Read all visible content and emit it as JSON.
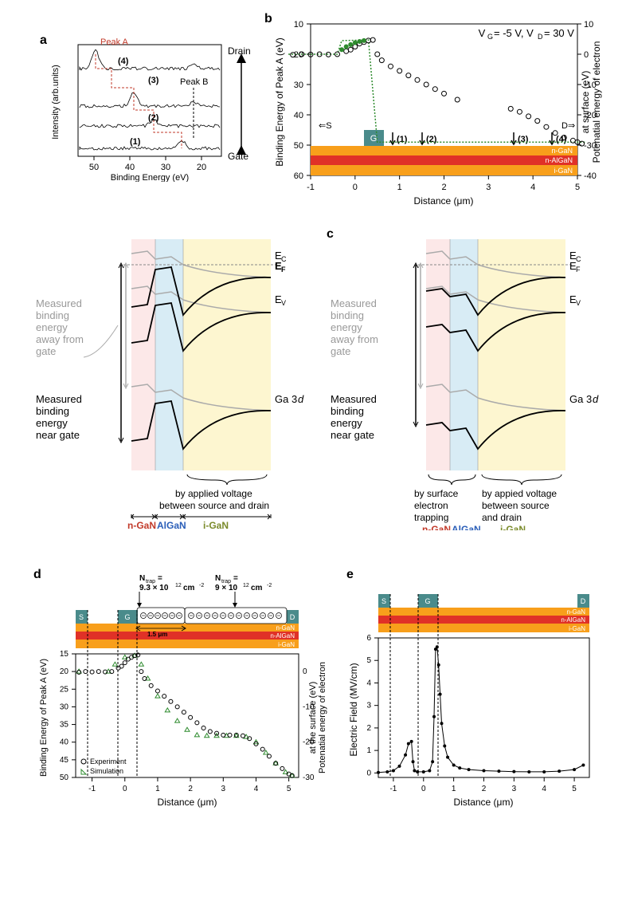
{
  "panel_a": {
    "label": "a",
    "x_label": "Binding Energy (eV)",
    "y_label": "Intensity (arb.units)",
    "peak_a_label": "Peak A",
    "peak_b_label": "Peak B",
    "spectrum_labels": [
      "(1)",
      "(2)",
      "(3)",
      "(4)"
    ],
    "side_labels": [
      "Drain",
      "Gate"
    ],
    "x_ticks": [
      50,
      40,
      30,
      20
    ],
    "colors": {
      "spectra": "#000000",
      "peak_a_line": "#c23a2a",
      "peak_b_line": "#000000"
    }
  },
  "panel_b": {
    "label": "b",
    "condition": "V_G = -5 V, V_D = 30 V",
    "x_label": "Distance (μm)",
    "y_label_left": "Binding Energy of Peak A (eV)",
    "y_label_right": "Potenatial energy of electron at surface (eV)",
    "x_range": [
      -1,
      5
    ],
    "y_left_range": [
      60,
      10
    ],
    "y_right_range": [
      -40,
      10
    ],
    "x_ticks": [
      -1,
      0,
      1,
      2,
      3,
      4,
      5
    ],
    "y_left_ticks": [
      10,
      20,
      30,
      40,
      50,
      60
    ],
    "y_right_ticks": [
      10,
      0,
      -10,
      -20,
      -30,
      -40
    ],
    "source_label": "⇐S",
    "drain_label": "D⇒",
    "gate_label": "G",
    "arrows": [
      "(1)",
      "(2)",
      "(3)",
      "(4)"
    ],
    "layer_labels": [
      "n-GaN",
      "n-AlGaN",
      "i-GaN"
    ],
    "layer_colors": [
      "#f89f1b",
      "#e03127",
      "#f89f1b"
    ],
    "gate_color": "#4a8b8b",
    "simulation_color": "#2e8b2e",
    "experiment_data": [
      [
        -1.4,
        20.2
      ],
      [
        -1.2,
        20.0
      ],
      [
        -1.0,
        20.1
      ],
      [
        -0.8,
        20.0
      ],
      [
        -0.6,
        20.1
      ],
      [
        -0.4,
        20.0
      ],
      [
        -0.2,
        19.0
      ],
      [
        -0.1,
        18.5
      ],
      [
        0.0,
        17.5
      ],
      [
        0.1,
        16.5
      ],
      [
        0.2,
        16.0
      ],
      [
        0.3,
        15.5
      ],
      [
        0.4,
        15.3
      ],
      [
        0.5,
        20.0
      ],
      [
        0.6,
        22.0
      ],
      [
        0.8,
        24.0
      ],
      [
        1.0,
        25.5
      ],
      [
        1.2,
        27.0
      ],
      [
        1.4,
        28.5
      ],
      [
        1.6,
        30.0
      ],
      [
        1.8,
        31.5
      ],
      [
        2.0,
        33.0
      ],
      [
        2.3,
        35.0
      ],
      [
        3.5,
        38.0
      ],
      [
        3.7,
        39.0
      ],
      [
        3.9,
        40.5
      ],
      [
        4.1,
        42.0
      ],
      [
        4.3,
        44.0
      ],
      [
        4.5,
        46.0
      ],
      [
        4.7,
        47.5
      ],
      [
        4.9,
        48.5
      ],
      [
        5.0,
        49.0
      ],
      [
        5.1,
        49.5
      ]
    ],
    "sim_line": [
      [
        -1.5,
        20
      ],
      [
        -0.4,
        20
      ],
      [
        -0.3,
        15.5
      ],
      [
        0.3,
        15.3
      ],
      [
        0.5,
        49
      ],
      [
        5.2,
        49
      ]
    ]
  },
  "panel_c_left": {
    "label": "c",
    "energy_labels": [
      "E_C",
      "E_F",
      "E_V",
      "Ga 3d"
    ],
    "text_gray": "Measured binding energy away from gate",
    "text_black": "Measured binding energy near gate",
    "bottom_text": "by applied voltage between source and drain",
    "layer_labels": [
      "n-GaN",
      "AlGaN",
      "i-GaN"
    ],
    "layer_label_colors": [
      "#c23a2a",
      "#2a5eb8",
      "#7a8a2a"
    ],
    "region_colors": [
      "#fce8e8",
      "#d8ecf5",
      "#fdf6d0"
    ]
  },
  "panel_c_right": {
    "energy_labels": [
      "E_C",
      "E_F",
      "E_V",
      "Ga 3d"
    ],
    "text_gray": "Measured binding energy away from gate",
    "text_black": "Measured binding energy near gate",
    "bottom_text_left": "by surface electron trapping",
    "bottom_text_right": "by appied voltage between source and drain",
    "layer_labels": [
      "n-GaN",
      "AlGaN",
      "i-GaN"
    ],
    "layer_label_colors": [
      "#c23a2a",
      "#2a5eb8",
      "#7a8a2a"
    ],
    "region_colors": [
      "#fce8e8",
      "#d8ecf5",
      "#fdf6d0"
    ]
  },
  "panel_d": {
    "label": "d",
    "x_label": "Distance (μm)",
    "y_label_left": "Binding Energy of Peak A (eV)",
    "y_label_right": "Potenatial energy of electron at the surface (eV)",
    "x_range": [
      -1.5,
      5.3
    ],
    "y_left_range": [
      50,
      15
    ],
    "y_right_range": [
      -30,
      5
    ],
    "x_ticks": [
      -1,
      0,
      1,
      2,
      3,
      4,
      5
    ],
    "y_left_ticks": [
      15,
      20,
      25,
      30,
      35,
      40,
      45,
      50
    ],
    "y_right_ticks": [
      0,
      -10,
      -20,
      -30
    ],
    "ntrap1": "N_trap= 9.3 × 10^12 cm^-2",
    "ntrap2": "N_trap= 9 × 10^12 cm^-2",
    "width_label": "1.5 μm",
    "layer_labels": [
      "n-GaN",
      "n-AlGaN",
      "i-GaN"
    ],
    "layer_colors": [
      "#f89f1b",
      "#e03127",
      "#f89f1b"
    ],
    "electrode_labels": [
      "S",
      "G",
      "D"
    ],
    "electrode_color": "#4a8b8b",
    "legend": [
      "Experiment",
      "Simulation"
    ],
    "experiment_data": [
      [
        -1.4,
        20.2
      ],
      [
        -1.2,
        20.0
      ],
      [
        -1.0,
        20.1
      ],
      [
        -0.8,
        20.0
      ],
      [
        -0.6,
        20.1
      ],
      [
        -0.4,
        20.0
      ],
      [
        -0.2,
        19.0
      ],
      [
        -0.1,
        18.5
      ],
      [
        0.0,
        17.5
      ],
      [
        0.1,
        16.5
      ],
      [
        0.2,
        16.0
      ],
      [
        0.3,
        15.5
      ],
      [
        0.4,
        15.3
      ],
      [
        0.5,
        20.0
      ],
      [
        0.6,
        22.0
      ],
      [
        0.8,
        24.0
      ],
      [
        1.0,
        25.5
      ],
      [
        1.2,
        27.0
      ],
      [
        1.4,
        28.5
      ],
      [
        1.6,
        30.0
      ],
      [
        1.8,
        31.5
      ],
      [
        2.0,
        33.0
      ],
      [
        2.2,
        34.5
      ],
      [
        2.4,
        36.0
      ],
      [
        2.6,
        37.0
      ],
      [
        2.8,
        37.5
      ],
      [
        3.0,
        38.0
      ],
      [
        3.2,
        38.0
      ],
      [
        3.4,
        38.0
      ],
      [
        3.6,
        38.2
      ],
      [
        3.8,
        39.0
      ],
      [
        4.0,
        40.5
      ],
      [
        4.2,
        42.0
      ],
      [
        4.4,
        44.0
      ],
      [
        4.6,
        46.0
      ],
      [
        4.8,
        47.5
      ],
      [
        5.0,
        49.0
      ],
      [
        5.1,
        49.5
      ]
    ],
    "simulation_data": [
      [
        -1.4,
        20
      ],
      [
        -0.5,
        20
      ],
      [
        -0.3,
        18
      ],
      [
        0.0,
        16
      ],
      [
        0.3,
        15.5
      ],
      [
        0.5,
        18
      ],
      [
        0.7,
        22
      ],
      [
        1.0,
        27
      ],
      [
        1.3,
        31
      ],
      [
        1.6,
        34
      ],
      [
        1.9,
        36.5
      ],
      [
        2.2,
        38
      ],
      [
        2.5,
        38.2
      ],
      [
        2.8,
        38.2
      ],
      [
        3.1,
        38.2
      ],
      [
        3.4,
        38.2
      ],
      [
        3.7,
        38.5
      ],
      [
        4.0,
        40
      ],
      [
        4.3,
        43
      ],
      [
        4.6,
        46
      ],
      [
        4.9,
        48.5
      ],
      [
        5.1,
        49.5
      ]
    ],
    "sim_color": "#2e8b2e"
  },
  "panel_e": {
    "label": "e",
    "x_label": "Distance (μm)",
    "y_label": "Electric Field (MV/cm)",
    "x_range": [
      -1.5,
      5.5
    ],
    "y_range": [
      -0.2,
      6
    ],
    "x_ticks": [
      -1,
      0,
      1,
      2,
      3,
      4,
      5
    ],
    "y_ticks": [
      0,
      1,
      2,
      3,
      4,
      5,
      6
    ],
    "layer_labels": [
      "n-GaN",
      "n-AlGaN",
      "i-GaN"
    ],
    "layer_colors": [
      "#f89f1b",
      "#e03127",
      "#f89f1b"
    ],
    "electrode_labels": [
      "S",
      "G",
      "D"
    ],
    "electrode_color": "#4a8b8b",
    "data": [
      [
        -1.5,
        0.02
      ],
      [
        -1.2,
        0.05
      ],
      [
        -1.0,
        0.1
      ],
      [
        -0.8,
        0.3
      ],
      [
        -0.6,
        0.8
      ],
      [
        -0.5,
        1.3
      ],
      [
        -0.4,
        1.4
      ],
      [
        -0.35,
        0.5
      ],
      [
        -0.3,
        0.1
      ],
      [
        -0.2,
        0.05
      ],
      [
        0.0,
        0.05
      ],
      [
        0.2,
        0.1
      ],
      [
        0.3,
        0.5
      ],
      [
        0.35,
        2.5
      ],
      [
        0.4,
        5.5
      ],
      [
        0.45,
        5.6
      ],
      [
        0.5,
        4.8
      ],
      [
        0.55,
        3.5
      ],
      [
        0.6,
        2.2
      ],
      [
        0.7,
        1.2
      ],
      [
        0.8,
        0.7
      ],
      [
        1.0,
        0.35
      ],
      [
        1.2,
        0.22
      ],
      [
        1.5,
        0.15
      ],
      [
        2.0,
        0.1
      ],
      [
        2.5,
        0.08
      ],
      [
        3.0,
        0.06
      ],
      [
        3.5,
        0.05
      ],
      [
        4.0,
        0.05
      ],
      [
        4.5,
        0.08
      ],
      [
        5.0,
        0.15
      ],
      [
        5.3,
        0.35
      ]
    ]
  }
}
